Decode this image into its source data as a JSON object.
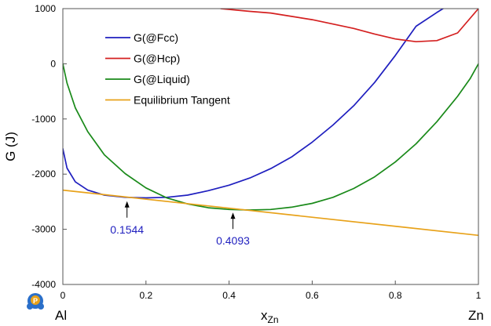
{
  "chart_data": {
    "type": "line",
    "ylabel": "G (J)",
    "xlabel": "x",
    "xlabel_sub": "Zn",
    "xlim": [
      0,
      1
    ],
    "ylim": [
      -4000,
      1000
    ],
    "x_ticks": [
      "0",
      "0.2",
      "0.4",
      "0.6",
      "0.8",
      "1"
    ],
    "y_ticks": [
      "1000",
      "0",
      "-1000",
      "-2000",
      "-3000",
      "-4000"
    ],
    "x_end_labels": {
      "left": "Al",
      "right": "Zn"
    },
    "legend_position": "top-left",
    "grid": false,
    "series": [
      {
        "name": "G(@Fcc)",
        "color": "#1f1fbf",
        "x": [
          0,
          0.01,
          0.03,
          0.06,
          0.1,
          0.15,
          0.2,
          0.25,
          0.3,
          0.35,
          0.4,
          0.45,
          0.5,
          0.55,
          0.6,
          0.65,
          0.7,
          0.75,
          0.8,
          0.85,
          0.9,
          0.915
        ],
        "y": [
          -1540,
          -1890,
          -2140,
          -2290,
          -2380,
          -2420,
          -2430,
          -2420,
          -2380,
          -2300,
          -2200,
          -2070,
          -1900,
          -1690,
          -1420,
          -1110,
          -760,
          -340,
          150,
          680,
          930,
          1000
        ]
      },
      {
        "name": "G(@Hcp)",
        "color": "#d42020",
        "x": [
          0.38,
          0.45,
          0.5,
          0.55,
          0.6,
          0.65,
          0.7,
          0.75,
          0.8,
          0.85,
          0.9,
          0.95,
          1.0
        ],
        "y": [
          1000,
          950,
          920,
          860,
          800,
          720,
          640,
          540,
          450,
          400,
          420,
          560,
          1000
        ]
      },
      {
        "name": "G(@Liquid)",
        "color": "#1a8a1a",
        "x": [
          0,
          0.01,
          0.03,
          0.06,
          0.1,
          0.15,
          0.2,
          0.25,
          0.3,
          0.35,
          0.4,
          0.45,
          0.5,
          0.55,
          0.6,
          0.65,
          0.7,
          0.75,
          0.8,
          0.85,
          0.9,
          0.95,
          0.98,
          1.0
        ],
        "y": [
          0,
          -350,
          -800,
          -1230,
          -1650,
          -1990,
          -2250,
          -2430,
          -2540,
          -2610,
          -2640,
          -2650,
          -2640,
          -2600,
          -2530,
          -2420,
          -2260,
          -2050,
          -1780,
          -1450,
          -1050,
          -590,
          -270,
          0
        ]
      },
      {
        "name": "Equilibrium Tangent",
        "color": "#e8a21a",
        "x": [
          0,
          1
        ],
        "y": [
          -2290,
          -3110
        ]
      }
    ],
    "annotations": [
      {
        "text": "0.1544",
        "x": 0.1544,
        "y": -2420,
        "color": "#1f1fbf"
      },
      {
        "text": "0.4093",
        "x": 0.4093,
        "y": -2625,
        "color": "#1f1fbf"
      }
    ]
  }
}
